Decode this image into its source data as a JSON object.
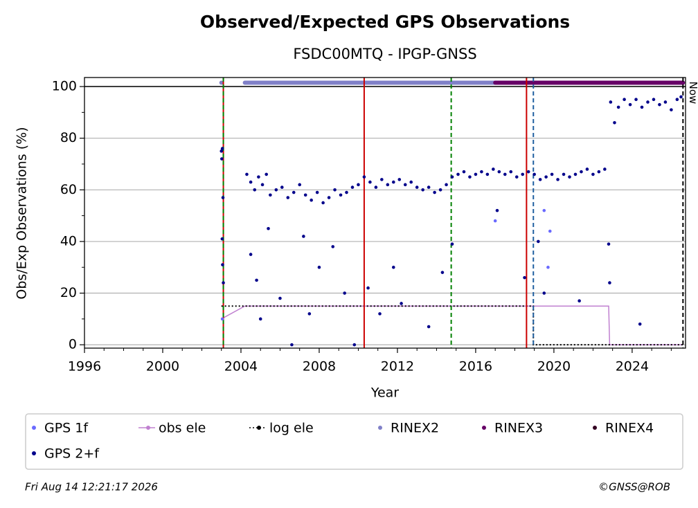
{
  "chart_data": {
    "type": "scatter",
    "title": "Observed/Expected GPS Observations",
    "subtitle": "FSDC00MTQ - IPGP-GNSS",
    "x_label": "Year",
    "y_label": "Obs/Exp Observations (%)",
    "xlim": [
      1996,
      2026.73
    ],
    "ylim": [
      -1.3,
      103.5
    ],
    "xticks": [
      1996,
      2000,
      2004,
      2008,
      2012,
      2016,
      2020,
      2024
    ],
    "xminorticks": [
      1997,
      1998,
      1999,
      2001,
      2002,
      2003,
      2005,
      2006,
      2007,
      2009,
      2010,
      2011,
      2013,
      2014,
      2015,
      2017,
      2018,
      2019,
      2021,
      2022,
      2023,
      2025,
      2026
    ],
    "yticks": [
      0,
      20,
      40,
      60,
      80,
      100
    ],
    "yminorticks": [
      10,
      30,
      50,
      70,
      90
    ],
    "grid": true,
    "hlines": [
      {
        "y": 100,
        "color": "#000000"
      }
    ],
    "vlines": [
      {
        "x": 2003.1,
        "color": "#cc0000",
        "dashed": false
      },
      {
        "x": 2003.1,
        "color": "#008000",
        "dashed": true
      },
      {
        "x": 2010.3,
        "color": "#cc0000",
        "dashed": false
      },
      {
        "x": 2014.75,
        "color": "#008000",
        "dashed": true
      },
      {
        "x": 2018.6,
        "color": "#cc0000",
        "dashed": false
      },
      {
        "x": 2018.95,
        "color": "#1f5fa0",
        "dashed": true
      },
      {
        "x": 2026.6,
        "color": "#000000",
        "dashed": true
      }
    ],
    "annotations": [
      {
        "text": "Now",
        "x": 2026.6,
        "y": 92
      }
    ],
    "series": [
      {
        "name": "GPS 1f",
        "color": "#6a6aff",
        "style": "points",
        "x": [
          2003.05,
          2017.0,
          2019.5,
          2019.7,
          2019.8
        ],
        "values": [
          10,
          48,
          52,
          30,
          44
        ]
      },
      {
        "name": "obs ele",
        "color": "#c080d0",
        "style": "line",
        "x": [
          2003.0,
          2004.2,
          2022.8,
          2022.85,
          2026.6
        ],
        "values": [
          10,
          15,
          15,
          0,
          0
        ]
      },
      {
        "name": "log ele",
        "color": "#000000",
        "style": "dotted",
        "x": [
          2003.0,
          2018.95,
          2018.95,
          2026.6
        ],
        "values": [
          15,
          15,
          0,
          0
        ]
      },
      {
        "name": "RINEX2",
        "color": "#8080c8",
        "style": "band",
        "x": [
          2003.0,
          2003.5,
          2004.2,
          2017.0
        ],
        "values": [
          101.5,
          null,
          101.5,
          101.5
        ]
      },
      {
        "name": "RINEX3",
        "color": "#660066",
        "style": "band",
        "x": [
          2017.0,
          2026.6
        ],
        "values": [
          101.5,
          101.5
        ]
      },
      {
        "name": "RINEX4",
        "color": "#330022",
        "style": "band",
        "x": [],
        "values": []
      },
      {
        "name": "GPS 2+f",
        "color": "#00008b",
        "style": "points",
        "x": [
          2003.0,
          2003.02,
          2003.05,
          2003.08,
          2003.04,
          2003.06,
          2003.1,
          2004.3,
          2004.5,
          2004.7,
          2004.9,
          2005.1,
          2005.3,
          2005.5,
          2005.8,
          2006.1,
          2006.4,
          2006.7,
          2007.0,
          2007.3,
          2007.6,
          2007.9,
          2008.2,
          2008.5,
          2008.8,
          2009.1,
          2009.4,
          2009.7,
          2010.0,
          2010.3,
          2010.6,
          2010.9,
          2011.2,
          2011.5,
          2011.8,
          2012.1,
          2012.4,
          2012.7,
          2013.0,
          2013.3,
          2013.6,
          2013.9,
          2014.2,
          2014.5,
          2014.8,
          2015.1,
          2015.4,
          2015.7,
          2016.0,
          2016.3,
          2016.6,
          2016.9,
          2017.2,
          2017.5,
          2017.8,
          2018.1,
          2018.4,
          2018.7,
          2019.0,
          2019.3,
          2019.6,
          2019.9,
          2020.2,
          2020.5,
          2020.8,
          2021.1,
          2021.4,
          2021.7,
          2022.0,
          2022.3,
          2022.6,
          2022.9,
          2023.1,
          2023.3,
          2023.6,
          2023.9,
          2024.2,
          2024.5,
          2024.8,
          2025.1,
          2025.4,
          2025.7,
          2026.0,
          2026.3,
          2026.5,
          2004.5,
          2004.8,
          2005.0,
          2005.4,
          2006.0,
          2006.6,
          2007.2,
          2007.5,
          2008.0,
          2008.7,
          2009.3,
          2009.8,
          2010.5,
          2011.1,
          2011.8,
          2012.2,
          2013.6,
          2014.3,
          2014.8,
          2017.1,
          2018.5,
          2019.2,
          2019.5,
          2021.3,
          2022.8,
          2022.85,
          2024.4
        ],
        "values": [
          75,
          72,
          76,
          57,
          41,
          31,
          24,
          66,
          63,
          60,
          65,
          62,
          66,
          58,
          60,
          61,
          57,
          59,
          62,
          58,
          56,
          59,
          55,
          57,
          60,
          58,
          59,
          61,
          62,
          65,
          63,
          61,
          64,
          62,
          63,
          64,
          62,
          63,
          61,
          60,
          61,
          59,
          60,
          62,
          65,
          66,
          67,
          65,
          66,
          67,
          66,
          68,
          67,
          66,
          67,
          65,
          66,
          67,
          66,
          64,
          65,
          66,
          64,
          66,
          65,
          66,
          67,
          68,
          66,
          67,
          68,
          94,
          86,
          92,
          95,
          93,
          95,
          92,
          94,
          95,
          93,
          94,
          91,
          95,
          96,
          35,
          25,
          10,
          45,
          18,
          0,
          42,
          12,
          30,
          38,
          20,
          0,
          22,
          12,
          30,
          16,
          7,
          28,
          39,
          52,
          26,
          40,
          20,
          17,
          39,
          24,
          8
        ]
      }
    ],
    "legend_order": [
      0,
      1,
      2,
      3,
      4,
      5,
      6
    ],
    "footer_left": "Fri Aug 14 12:21:17 2026",
    "footer_right": "©GNSS@ROB"
  }
}
